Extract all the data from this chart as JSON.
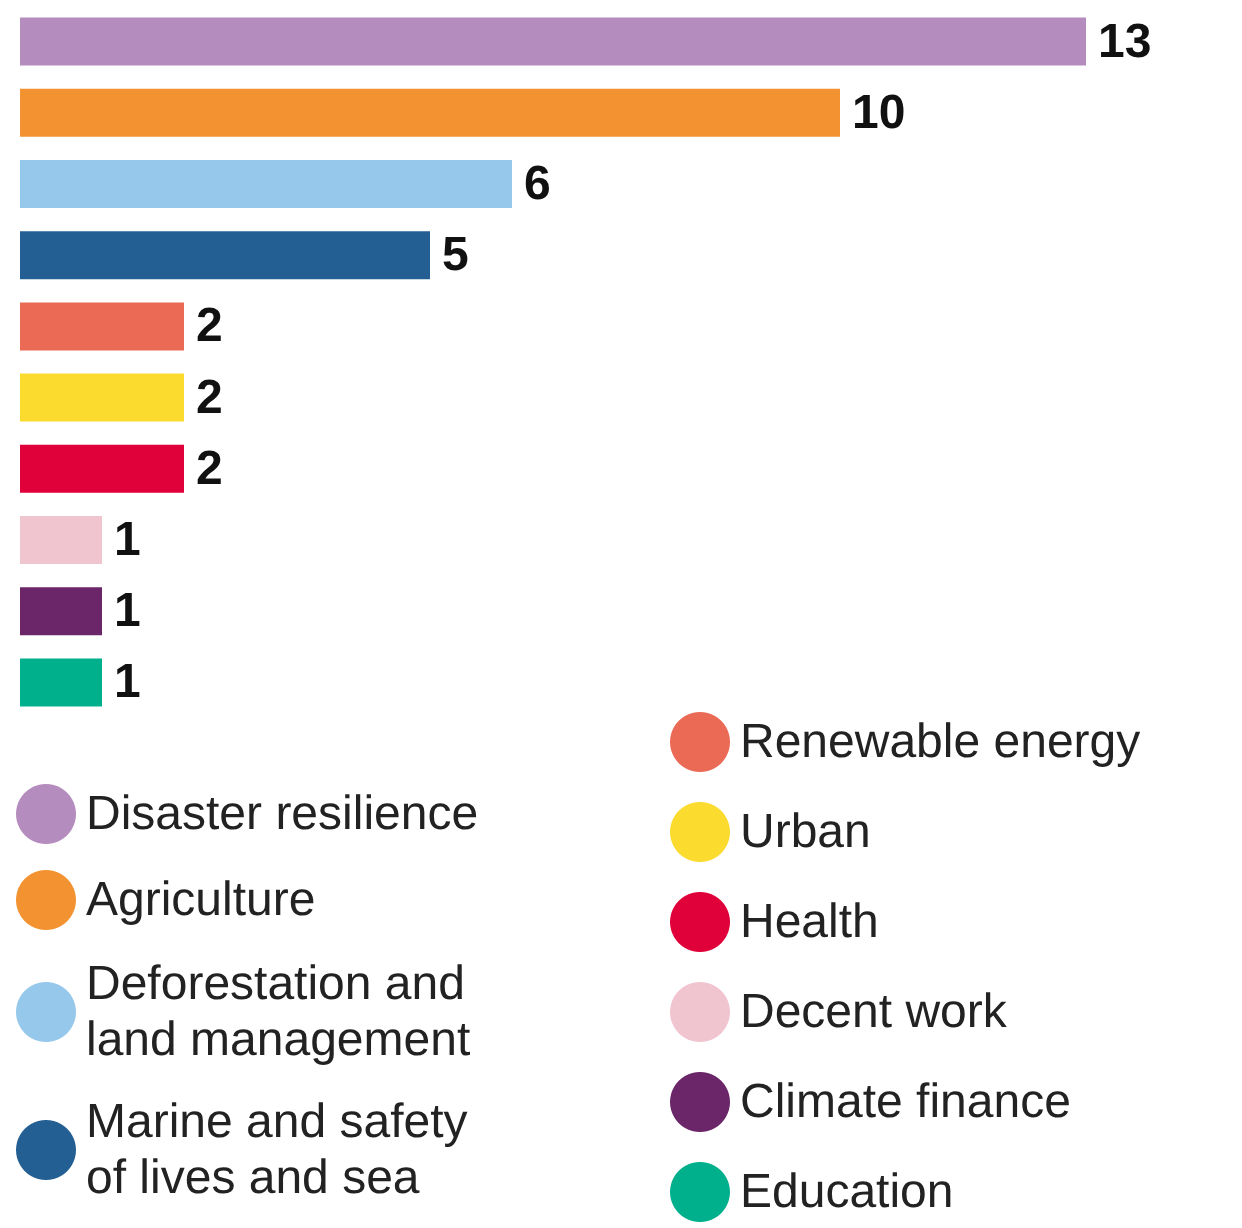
{
  "chart_data": {
    "type": "bar",
    "orientation": "horizontal",
    "stacked": true,
    "categories": [
      null,
      null,
      null,
      null,
      null,
      null,
      null,
      null,
      null,
      null
    ],
    "series": [
      {
        "name": "Disaster resilience",
        "color": "#b48cbe",
        "values": [
          13,
          null,
          null,
          null,
          null,
          null,
          null,
          null,
          null,
          null
        ]
      },
      {
        "name": "Agriculture",
        "color": "#f39231",
        "values": [
          null,
          10,
          null,
          null,
          null,
          null,
          null,
          null,
          null,
          null
        ]
      },
      {
        "name": "Deforestation and land management",
        "color": "#96c8eb",
        "values": [
          null,
          null,
          6,
          null,
          null,
          null,
          null,
          null,
          null,
          null
        ]
      },
      {
        "name": "Marine and safety of lives and sea",
        "color": "#245f93",
        "values": [
          null,
          null,
          null,
          5,
          null,
          null,
          null,
          null,
          null,
          null
        ]
      },
      {
        "name": "Renewable energy",
        "color": "#ea6a55",
        "values": [
          null,
          null,
          null,
          null,
          2,
          null,
          null,
          null,
          null,
          null
        ]
      },
      {
        "name": "Urban",
        "color": "#fbdc2e",
        "values": [
          null,
          null,
          null,
          null,
          null,
          2,
          null,
          null,
          null,
          null
        ]
      },
      {
        "name": "Health",
        "color": "#e0003a",
        "values": [
          null,
          null,
          null,
          null,
          null,
          null,
          2,
          null,
          null,
          null
        ]
      },
      {
        "name": "Decent work",
        "color": "#f0c5d0",
        "values": [
          null,
          null,
          null,
          null,
          null,
          null,
          null,
          1,
          null,
          null
        ]
      },
      {
        "name": "Climate finance",
        "color": "#6a2669",
        "values": [
          null,
          null,
          null,
          null,
          null,
          null,
          null,
          null,
          1,
          null
        ]
      },
      {
        "name": "Education",
        "color": "#00b08c",
        "values": [
          null,
          null,
          null,
          null,
          null,
          null,
          null,
          null,
          null,
          1
        ]
      }
    ],
    "data_labels": true,
    "legend": "bottom",
    "tick_labels": false
  }
}
